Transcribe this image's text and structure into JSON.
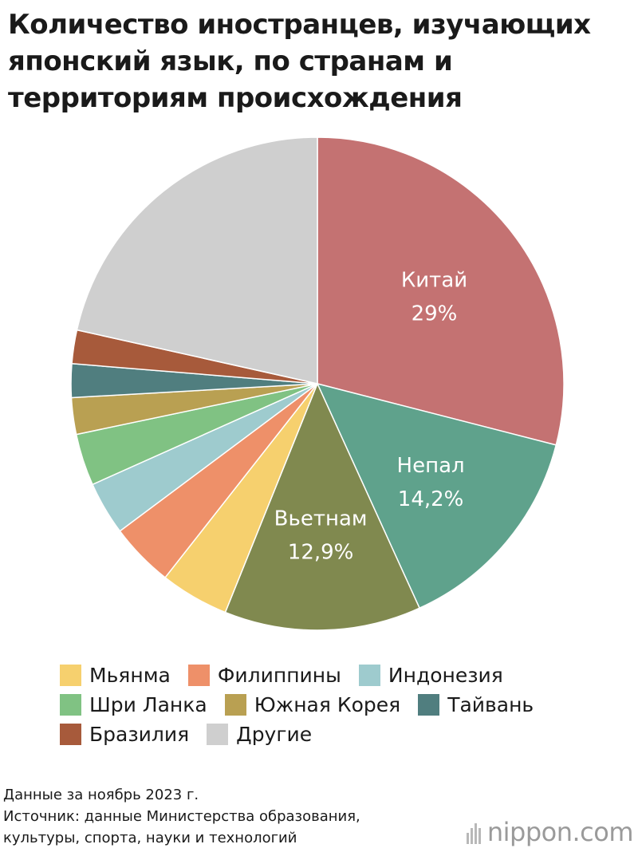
{
  "chart_data": {
    "type": "pie",
    "title_lines": [
      "Количество иностранцев, изучающих",
      "японский язык, по странам и",
      "территориям происхождения"
    ],
    "slices": [
      {
        "name": "Китай",
        "value": 29.0,
        "label": "29%",
        "color": "#c47272",
        "text_color": "#ffffff"
      },
      {
        "name": "Непал",
        "value": 14.2,
        "label": "14,2%",
        "color": "#5fa28c",
        "text_color": "#ffffff"
      },
      {
        "name": "Вьетнам",
        "value": 12.9,
        "label": "12,9%",
        "color": "#80894f",
        "text_color": "#ffffff"
      },
      {
        "name": "Мьянма",
        "value": 4.5,
        "color": "#f6d06e"
      },
      {
        "name": "Филиппины",
        "value": 4.2,
        "color": "#ee9069"
      },
      {
        "name": "Индонезия",
        "value": 3.5,
        "color": "#9ecbce"
      },
      {
        "name": "Шри Ланка",
        "value": 3.4,
        "color": "#80c283"
      },
      {
        "name": "Южная Корея",
        "value": 2.4,
        "color": "#b9a052"
      },
      {
        "name": "Тайвань",
        "value": 2.2,
        "color": "#507e7f"
      },
      {
        "name": "Бразилия",
        "value": 2.2,
        "color": "#a75a3b"
      },
      {
        "name": "Другие",
        "value": 21.5,
        "color": "#cfcfcf"
      }
    ]
  },
  "legend_rows": [
    [
      {
        "label": "Мьянма",
        "color": "#f6d06e"
      },
      {
        "label": "Филиппины",
        "color": "#ee9069"
      },
      {
        "label": "Индонезия",
        "color": "#9ecbce"
      }
    ],
    [
      {
        "label": "Шри Ланка",
        "color": "#80c283"
      },
      {
        "label": "Южная Корея",
        "color": "#b9a052"
      },
      {
        "label": "Тайвань",
        "color": "#507e7f"
      }
    ],
    [
      {
        "label": "Бразилия",
        "color": "#a75a3b"
      },
      {
        "label": "Другие",
        "color": "#cfcfcf"
      }
    ]
  ],
  "notes": {
    "date": "Данные за ноябрь 2023 г.",
    "source_line1": "Источник: данные Министерства образования,",
    "source_line2": "культуры, спорта, науки и технологий"
  },
  "logo": {
    "text": "nippon.com",
    "icon": "nippon-bars-icon"
  }
}
